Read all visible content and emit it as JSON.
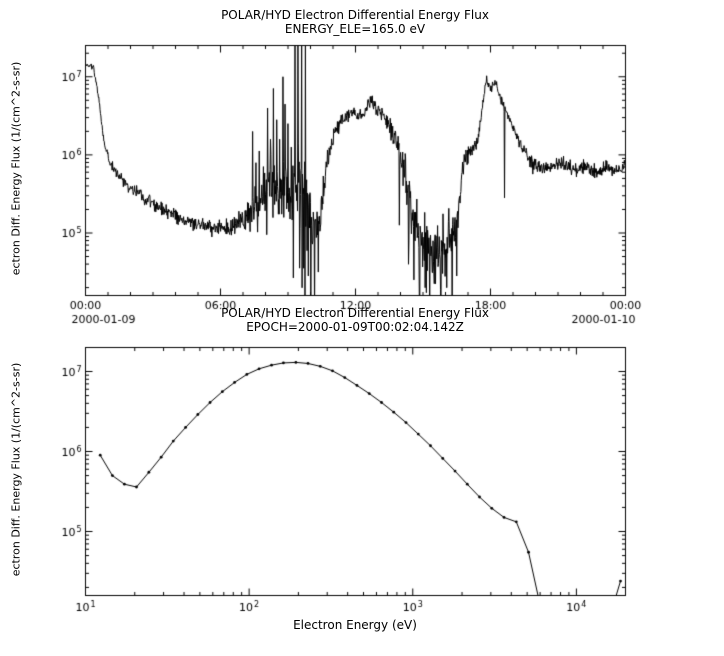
{
  "page": {
    "background": "#ffffff",
    "foreground": "#000000"
  },
  "chart_data": [
    {
      "type": "line",
      "panel": "time-series",
      "title": "POLAR/HYD  Electron Differential Energy Flux",
      "subtitle": "ENERGY_ELE=165.0 eV",
      "ylabel": "ectron Diff. Energy Flux (1/(cm^2-s-sr)",
      "xlabel": "",
      "x_units": "hours of 2000-01-09",
      "xlim": [
        0,
        24
      ],
      "ylog_lim": [
        4.2,
        7.4
      ],
      "x_major_ticks": [
        0,
        6,
        12,
        18,
        24
      ],
      "x_tick_labels": [
        "00:00",
        "06:00",
        "12:00",
        "18:00",
        "00:00"
      ],
      "x_date_left": "2000-01-09",
      "x_date_right": "2000-01-10",
      "y_major_exponents": [
        5,
        6,
        7
      ],
      "line_color": "#000000",
      "grid": false,
      "samples": 1300,
      "noise_seed": 20000109,
      "envelope_log10": [
        [
          0,
          7.15
        ],
        [
          0.35,
          7.12
        ],
        [
          0.55,
          6.8
        ],
        [
          0.8,
          6.2
        ],
        [
          1.1,
          5.9
        ],
        [
          1.5,
          5.72
        ],
        [
          2,
          5.58
        ],
        [
          2.6,
          5.45
        ],
        [
          3.2,
          5.34
        ],
        [
          4,
          5.22
        ],
        [
          4.8,
          5.13
        ],
        [
          5.6,
          5.06
        ],
        [
          6.2,
          5.05
        ],
        [
          6.8,
          5.1
        ],
        [
          7.2,
          5.18
        ],
        [
          7.6,
          5.32
        ],
        [
          8,
          5.48
        ],
        [
          8.4,
          5.58
        ],
        [
          8.8,
          5.52
        ],
        [
          9.1,
          5.48
        ],
        [
          9.4,
          5.58
        ],
        [
          9.8,
          5.42
        ],
        [
          10.1,
          4.95
        ],
        [
          10.4,
          5.15
        ],
        [
          10.7,
          5.9
        ],
        [
          11,
          6.25
        ],
        [
          11.4,
          6.45
        ],
        [
          11.8,
          6.55
        ],
        [
          12.1,
          6.48
        ],
        [
          12.4,
          6.55
        ],
        [
          12.7,
          6.7
        ],
        [
          12.9,
          6.6
        ],
        [
          13.2,
          6.5
        ],
        [
          13.6,
          6.3
        ],
        [
          14,
          6.0
        ],
        [
          14.3,
          5.6
        ],
        [
          14.6,
          5.15
        ],
        [
          15,
          4.9
        ],
        [
          15.4,
          4.78
        ],
        [
          15.8,
          4.82
        ],
        [
          16.2,
          4.92
        ],
        [
          16.5,
          5.1
        ],
        [
          16.8,
          5.9
        ],
        [
          17.1,
          6.05
        ],
        [
          17.4,
          6.15
        ],
        [
          17.6,
          6.5
        ],
        [
          17.8,
          6.95
        ],
        [
          18,
          6.85
        ],
        [
          18.2,
          6.95
        ],
        [
          18.45,
          6.72
        ],
        [
          18.7,
          6.55
        ],
        [
          19,
          6.35
        ],
        [
          19.4,
          6.1
        ],
        [
          19.8,
          5.9
        ],
        [
          20.2,
          5.8
        ],
        [
          20.7,
          5.85
        ],
        [
          21.2,
          5.9
        ],
        [
          21.7,
          5.8
        ],
        [
          22.2,
          5.85
        ],
        [
          22.7,
          5.75
        ],
        [
          23.2,
          5.85
        ],
        [
          23.6,
          5.78
        ],
        [
          24,
          5.85
        ]
      ],
      "noise_amp_log10": [
        [
          0,
          0.03
        ],
        [
          0.5,
          0.06
        ],
        [
          1,
          0.08
        ],
        [
          2,
          0.1
        ],
        [
          3,
          0.12
        ],
        [
          4,
          0.12
        ],
        [
          5,
          0.1
        ],
        [
          6,
          0.12
        ],
        [
          6.8,
          0.18
        ],
        [
          7.4,
          0.3
        ],
        [
          8,
          0.4
        ],
        [
          8.6,
          0.5
        ],
        [
          9.2,
          0.6
        ],
        [
          9.7,
          0.65
        ],
        [
          10.1,
          0.5
        ],
        [
          10.5,
          0.3
        ],
        [
          11,
          0.15
        ],
        [
          11.6,
          0.1
        ],
        [
          12.5,
          0.1
        ],
        [
          13.2,
          0.12
        ],
        [
          13.8,
          0.2
        ],
        [
          14.3,
          0.35
        ],
        [
          14.8,
          0.45
        ],
        [
          15.4,
          0.5
        ],
        [
          16,
          0.5
        ],
        [
          16.4,
          0.35
        ],
        [
          16.8,
          0.15
        ],
        [
          17.4,
          0.1
        ],
        [
          18,
          0.08
        ],
        [
          18.6,
          0.08
        ],
        [
          19.2,
          0.1
        ],
        [
          20,
          0.12
        ],
        [
          21,
          0.1
        ],
        [
          22,
          0.12
        ],
        [
          23,
          0.1
        ],
        [
          24,
          0.1
        ]
      ],
      "spikes_log10": [
        [
          7.42,
          6.3
        ],
        [
          7.58,
          5.9
        ],
        [
          7.72,
          6.05
        ],
        [
          7.9,
          5.85
        ],
        [
          8.1,
          6.6
        ],
        [
          8.22,
          6.2
        ],
        [
          8.35,
          6.85
        ],
        [
          8.5,
          6.45
        ],
        [
          8.62,
          6.2
        ],
        [
          8.78,
          7.0
        ],
        [
          8.86,
          6.65
        ],
        [
          9.0,
          6.4
        ],
        [
          9.15,
          6.1
        ],
        [
          9.32,
          7.6
        ],
        [
          9.45,
          7.6
        ],
        [
          9.6,
          7.6
        ],
        [
          9.78,
          7.6
        ]
      ],
      "dropouts_log10": [
        [
          9.52,
          4.55
        ],
        [
          9.9,
          4.45
        ],
        [
          10.02,
          3.9
        ],
        [
          10.18,
          3.9
        ],
        [
          10.35,
          4.5
        ],
        [
          13.95,
          5.1
        ],
        [
          14.35,
          4.6
        ],
        [
          14.6,
          4.4
        ],
        [
          14.85,
          3.9
        ],
        [
          15.1,
          4.3
        ],
        [
          15.3,
          3.9
        ],
        [
          15.55,
          4.35
        ],
        [
          15.8,
          3.9
        ],
        [
          16.05,
          4.3
        ],
        [
          16.3,
          3.9
        ],
        [
          16.5,
          4.45
        ],
        [
          18.62,
          5.45
        ]
      ]
    },
    {
      "type": "line",
      "panel": "energy-spectrum",
      "title": "POLAR/HYD  Electron Differential Energy Flux",
      "subtitle": "EPOCH=2000-01-09T00:02:04.142Z",
      "xlabel": "Electron Energy (eV)",
      "ylabel": "ectron Diff. Energy Flux (1/(cm^2-s-sr)",
      "xlog_lim": [
        1.0,
        4.3
      ],
      "ylog_lim": [
        4.2,
        7.3
      ],
      "x_major_exponents": [
        1,
        2,
        3,
        4
      ],
      "y_major_exponents": [
        5,
        6,
        7
      ],
      "marker": "dot",
      "line_color": "#000000",
      "grid": false,
      "points": [
        [
          12.3,
          900000.0
        ],
        [
          14.6,
          500000.0
        ],
        [
          17.3,
          390000.0
        ],
        [
          20.5,
          360000.0
        ],
        [
          24.4,
          550000.0
        ],
        [
          29.0,
          850000.0
        ],
        [
          34.4,
          1350000.0
        ],
        [
          40.9,
          2000000.0
        ],
        [
          48.6,
          2900000.0
        ],
        [
          57.7,
          4100000.0
        ],
        [
          68.6,
          5600000.0
        ],
        [
          81.5,
          7300000.0
        ],
        [
          96.8,
          9200000.0
        ],
        [
          115,
          10800000.0
        ],
        [
          137,
          12000000.0
        ],
        [
          162,
          12800000.0
        ],
        [
          193,
          13000000.0
        ],
        [
          229,
          12600000.0
        ],
        [
          272,
          11600000.0
        ],
        [
          323,
          10200000.0
        ],
        [
          384,
          8400000.0
        ],
        [
          456,
          6700000.0
        ],
        [
          542,
          5300000.0
        ],
        [
          644,
          4100000.0
        ],
        [
          765,
          3100000.0
        ],
        [
          909,
          2300000.0
        ],
        [
          1080,
          1650000.0
        ],
        [
          1283,
          1180000.0
        ],
        [
          1525,
          820000.0
        ],
        [
          1812,
          570000.0
        ],
        [
          2153,
          390000.0
        ],
        [
          2558,
          270000.0
        ],
        [
          3040,
          195000.0
        ],
        [
          3612,
          150000.0
        ],
        [
          4292,
          132000.0
        ],
        [
          5099,
          55000.0
        ],
        [
          6058,
          11000.0
        ],
        [
          17000,
          13000.0
        ],
        [
          18600,
          24000.0
        ]
      ]
    }
  ]
}
